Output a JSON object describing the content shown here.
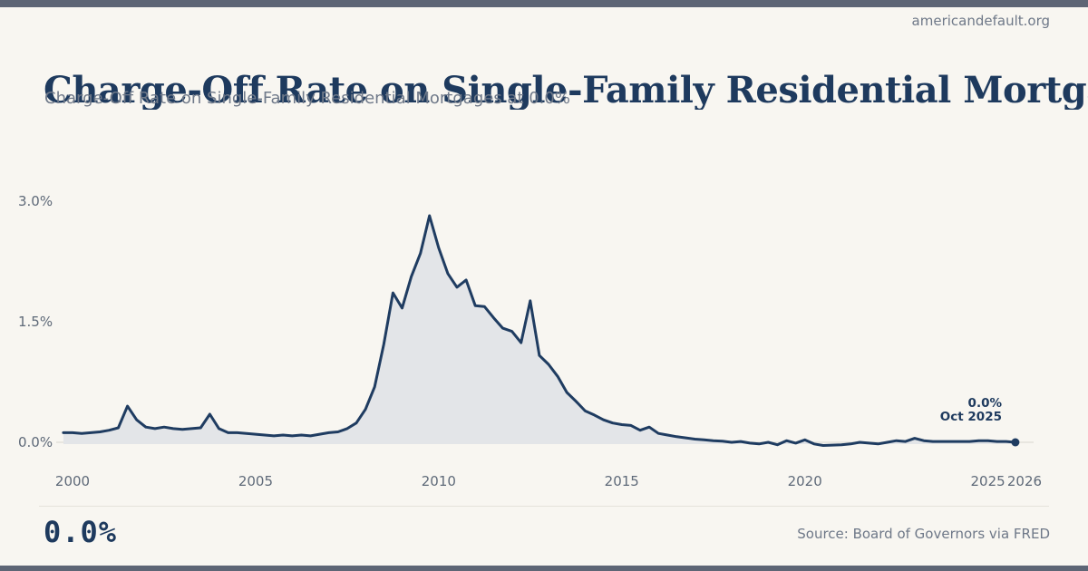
{
  "site": {
    "name": "americandefault.org"
  },
  "header": {
    "title": "Charge-Off Rate on Single-Family Residential Mortgages",
    "subtitle": "Charge-Off Rate on Single-Family Residential Mortgages at 0.0%"
  },
  "footer": {
    "big_value": "0.0%",
    "source": "Source: Board of Governors via FRED"
  },
  "colors": {
    "accent_bar": "#5d6575",
    "background": "#f8f6f1",
    "line": "#1f3c61",
    "area_fill": "#e3e5e8",
    "title_navy": "#1e3a5e",
    "muted_text": "#707a8a",
    "tick_text": "#5f6a79",
    "gridline": "#e3e1da"
  },
  "chart_data": {
    "type": "area",
    "title": "Charge-Off Rate on Single-Family Residential Mortgages",
    "unit": "percent",
    "x_start": 1999.75,
    "x_step": 0.25,
    "xlim": [
      1999.75,
      2026
    ],
    "ylim": [
      0,
      3.0
    ],
    "grid": "zero-line-only",
    "legend": "none",
    "x_ticks": [
      2000,
      2005,
      2010,
      2015,
      2020,
      2025,
      2026
    ],
    "y_ticks": [
      {
        "label": "0.0%",
        "value": 0.0
      },
      {
        "label": "1.5%",
        "value": 1.5
      },
      {
        "label": "3.0%",
        "value": 3.0
      }
    ],
    "values": [
      0.12,
      0.12,
      0.11,
      0.12,
      0.13,
      0.15,
      0.18,
      0.45,
      0.28,
      0.19,
      0.17,
      0.19,
      0.17,
      0.16,
      0.17,
      0.18,
      0.35,
      0.17,
      0.12,
      0.12,
      0.11,
      0.1,
      0.09,
      0.08,
      0.09,
      0.08,
      0.09,
      0.08,
      0.1,
      0.12,
      0.13,
      0.17,
      0.24,
      0.41,
      0.69,
      1.22,
      1.86,
      1.67,
      2.06,
      2.35,
      2.82,
      2.42,
      2.1,
      1.93,
      2.02,
      1.7,
      1.69,
      1.55,
      1.42,
      1.38,
      1.24,
      1.76,
      1.08,
      0.97,
      0.82,
      0.62,
      0.51,
      0.39,
      0.34,
      0.28,
      0.24,
      0.22,
      0.21,
      0.15,
      0.19,
      0.11,
      0.09,
      0.07,
      0.055,
      0.04,
      0.03,
      0.02,
      0.015,
      0.0,
      0.01,
      -0.01,
      -0.02,
      0.0,
      -0.03,
      0.02,
      -0.01,
      0.03,
      -0.02,
      -0.04,
      -0.035,
      -0.03,
      -0.02,
      0.0,
      -0.01,
      -0.02,
      0.0,
      0.02,
      0.01,
      0.05,
      0.02,
      0.01,
      0.01,
      0.01,
      0.01,
      0.01,
      0.02,
      0.02,
      0.01,
      0.01,
      0.0
    ],
    "last_point": {
      "x": 2025.75,
      "y": 0.0,
      "label_value": "0.0%",
      "label_date": "Oct 2025"
    }
  }
}
